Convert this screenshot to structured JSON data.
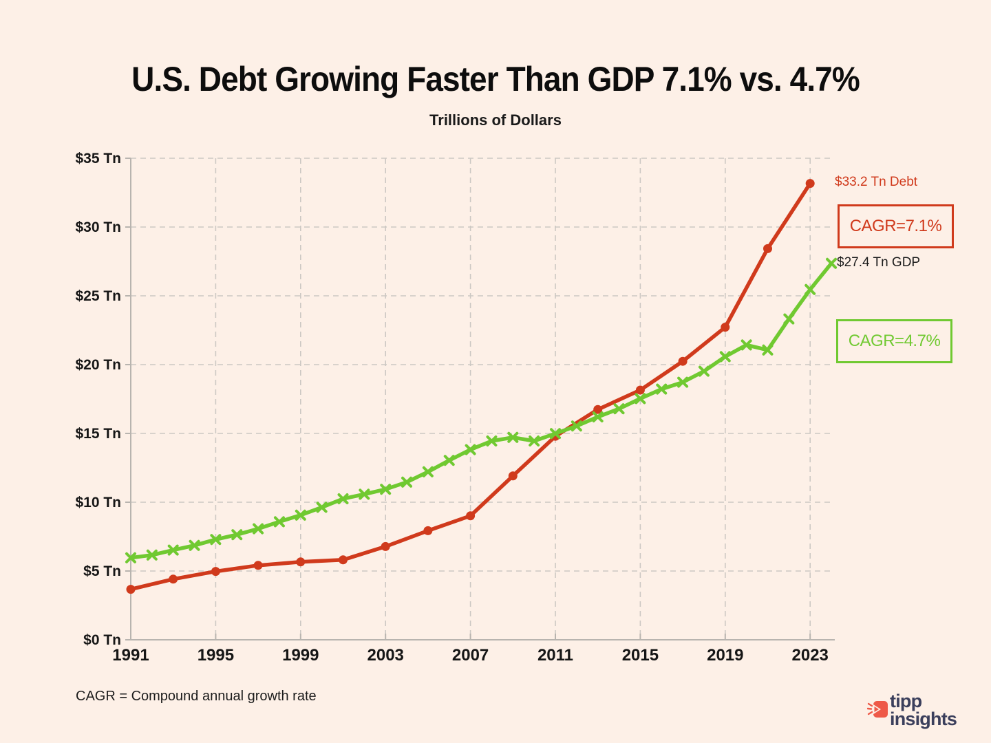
{
  "page": {
    "title": "U.S. Debt Growing Faster Than GDP 7.1% vs. 4.7%",
    "subtitle": "Trillions of Dollars",
    "footnote": "CAGR = Compound annual growth rate"
  },
  "logo": {
    "line1": "tipp",
    "line2": "insights"
  },
  "colors": {
    "background": "#fdf0e7",
    "debt": "#d03a1c",
    "gdp": "#70c931",
    "grid": "#ccc8c3",
    "axis": "#b8b4af",
    "text_dark": "#161616",
    "logo_navy": "#3b3f5c",
    "logo_coral": "#ee5948"
  },
  "chart_data": {
    "type": "line",
    "title": "U.S. Debt Growing Faster Than GDP 7.1% vs. 4.7%",
    "units_label": "Trillions of Dollars",
    "grid": true,
    "x_axis": {
      "ticks": [
        1991,
        1995,
        1999,
        2003,
        2007,
        2011,
        2015,
        2019,
        2023
      ],
      "min": 1991,
      "max": 2024.2
    },
    "y_axis": {
      "tick_values": [
        0,
        5,
        10,
        15,
        20,
        25,
        30,
        35
      ],
      "tick_suffix": " Tn",
      "tick_prefix": "$",
      "ylim": [
        0,
        35
      ]
    },
    "series": [
      {
        "name": "Debt",
        "marker": "circle",
        "color": "#d03a1c",
        "x": [
          1991,
          1993,
          1995,
          1997,
          1999,
          2001,
          2003,
          2005,
          2007,
          2009,
          2011,
          2013,
          2015,
          2017,
          2019,
          2021,
          2023
        ],
        "values": [
          3.67,
          4.41,
          4.97,
          5.41,
          5.66,
          5.81,
          6.78,
          7.93,
          9.01,
          11.91,
          14.79,
          16.74,
          18.15,
          20.24,
          22.72,
          28.43,
          33.17
        ],
        "end_label": "$33.2 Tn Debt",
        "cagr_label": "CAGR=7.1%"
      },
      {
        "name": "GDP",
        "marker": "x",
        "color": "#70c931",
        "x": [
          1991,
          1992,
          1993,
          1994,
          1995,
          1996,
          1997,
          1998,
          1999,
          2000,
          2001,
          2002,
          2003,
          2004,
          2005,
          2006,
          2007,
          2008,
          2009,
          2010,
          2011,
          2012,
          2013,
          2014,
          2015,
          2016,
          2017,
          2018,
          2019,
          2020,
          2021,
          2022,
          2023,
          2024
        ],
        "values": [
          5.96,
          6.16,
          6.52,
          6.86,
          7.29,
          7.64,
          8.07,
          8.58,
          9.06,
          9.63,
          10.25,
          10.58,
          10.94,
          11.46,
          12.21,
          13.04,
          13.82,
          14.45,
          14.71,
          14.45,
          14.99,
          15.54,
          16.2,
          16.79,
          17.53,
          18.22,
          18.72,
          19.52,
          20.58,
          21.43,
          21.06,
          23.32,
          25.46,
          27.36
        ],
        "end_label": "$27.4 Tn GDP",
        "cagr_label": "CAGR=4.7%"
      }
    ]
  }
}
